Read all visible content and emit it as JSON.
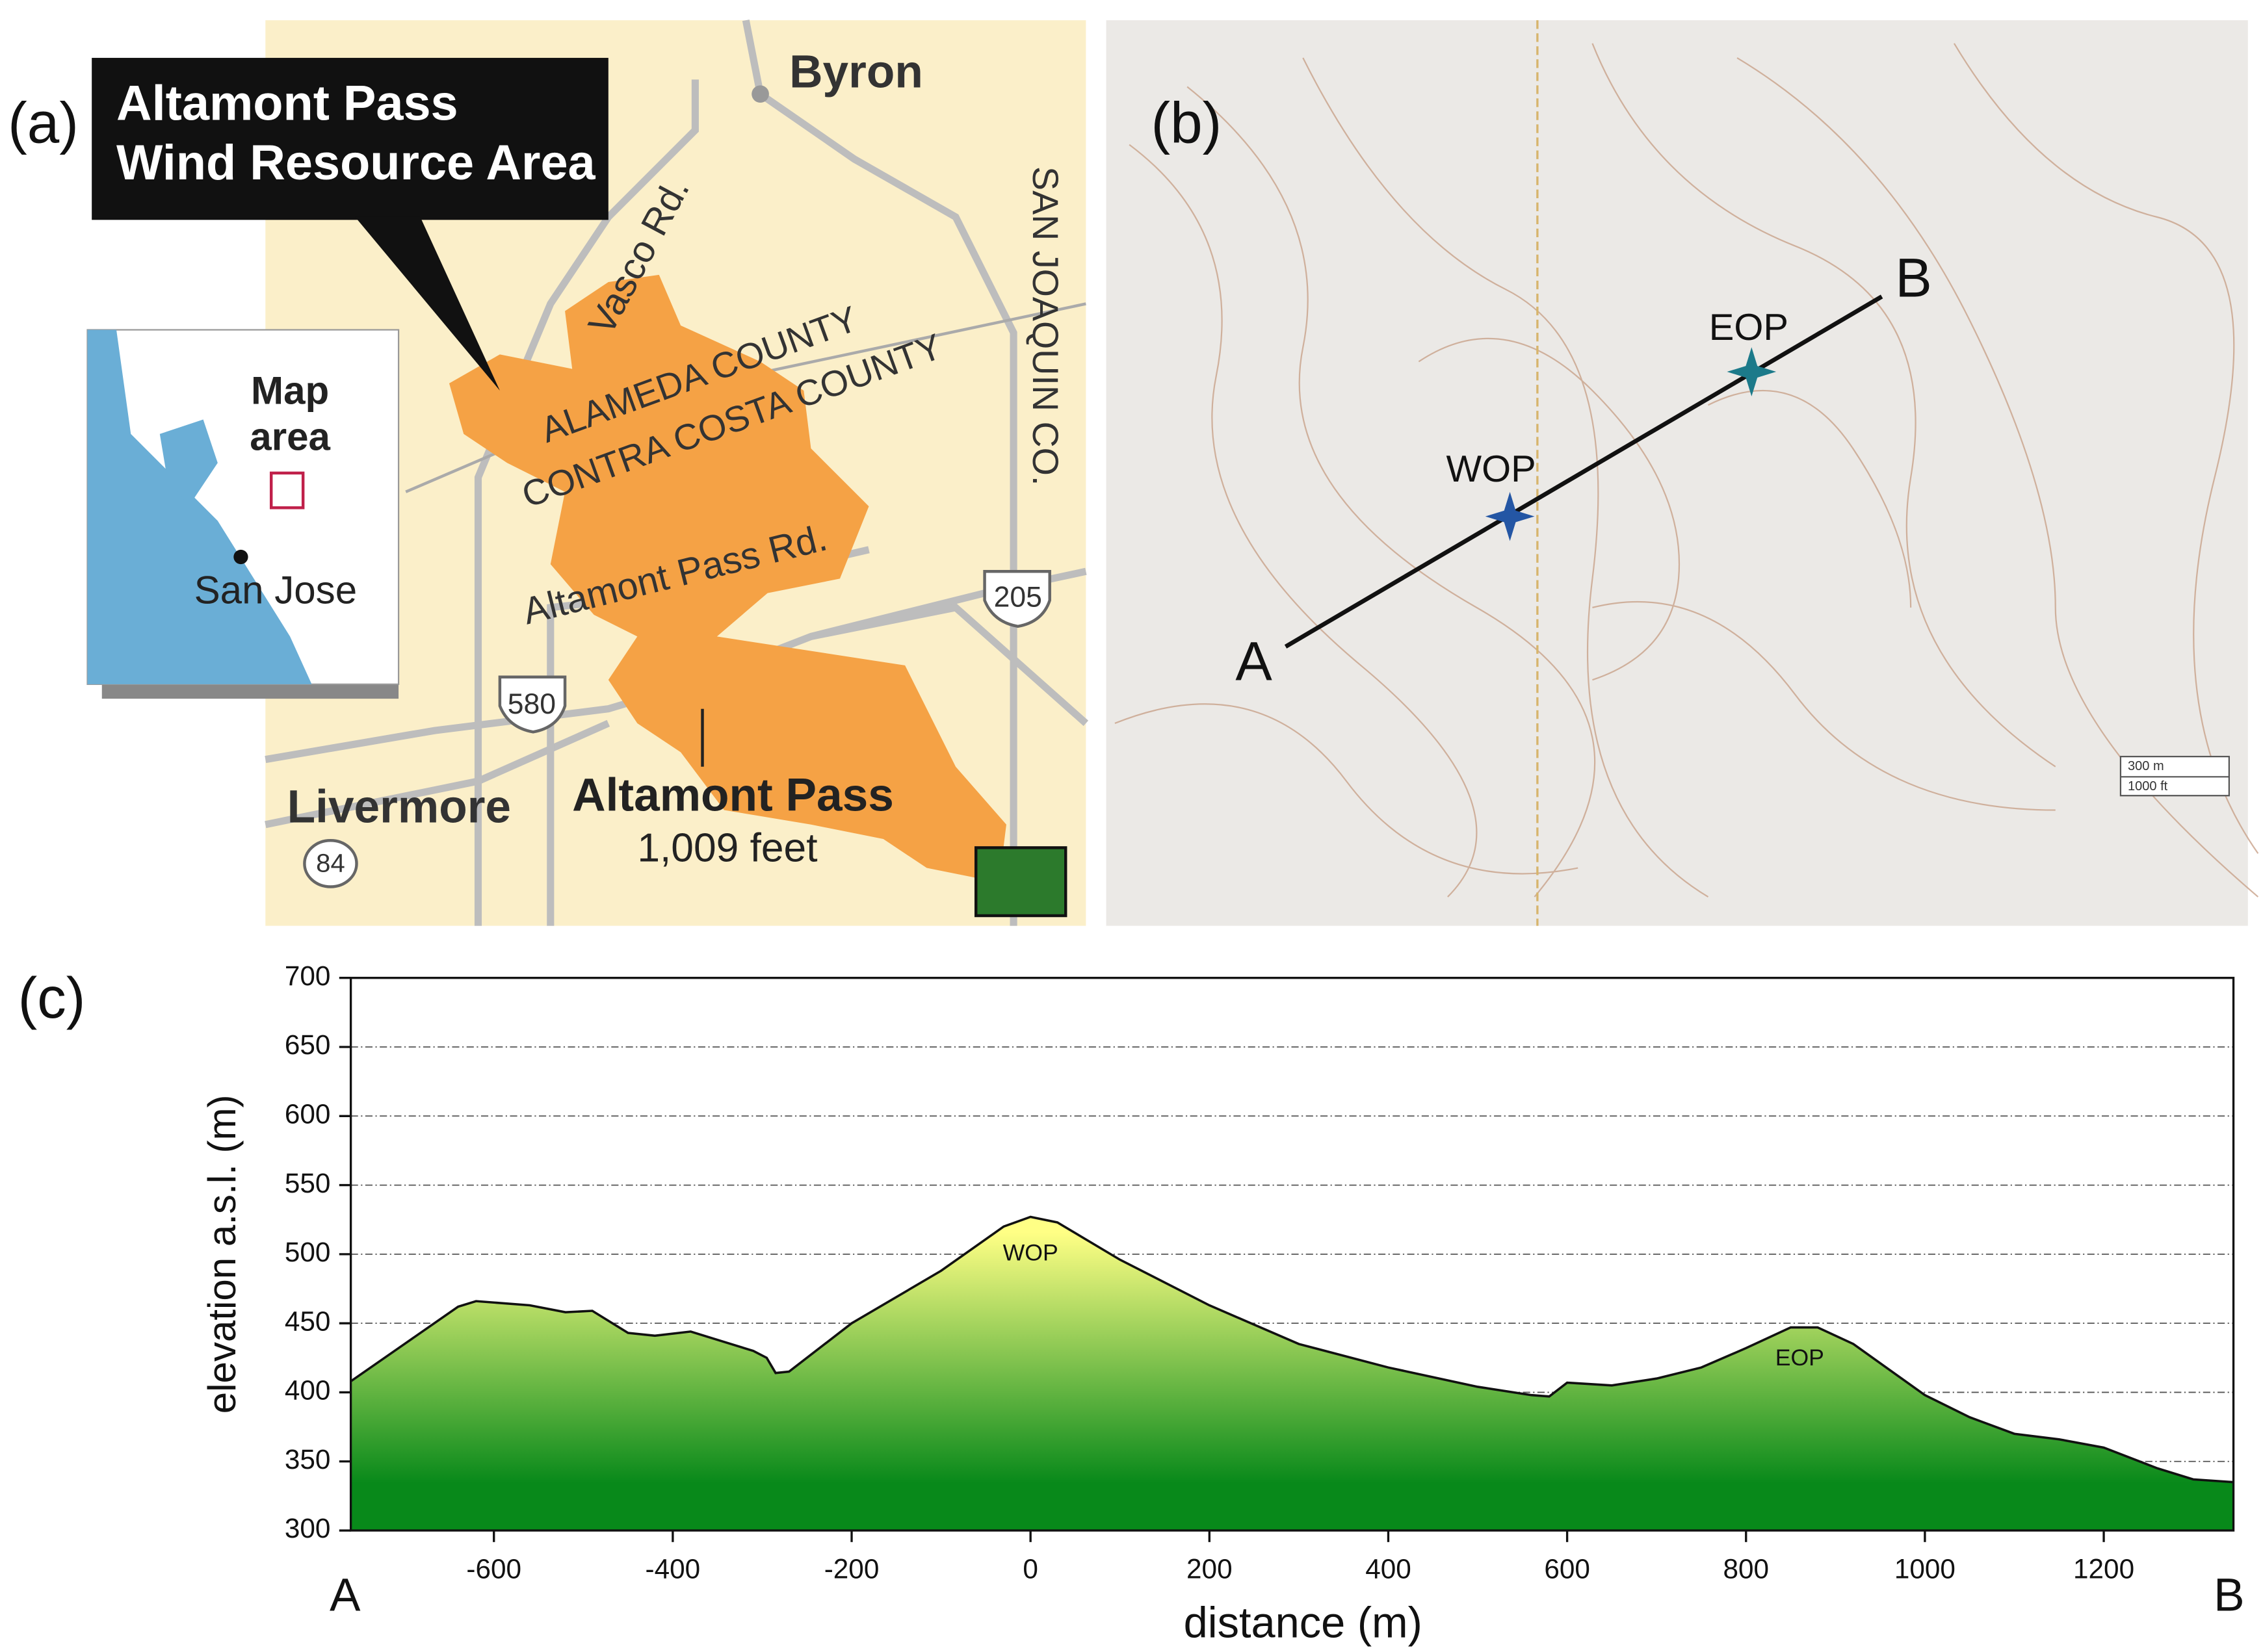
{
  "map_a": {
    "label": "(a)",
    "title": [
      "Altamont Pass",
      "Wind Resource Area"
    ],
    "places": {
      "byron": "Byron",
      "vasco": "Vasco Rd.",
      "alameda": "ALAMEDA COUNTY",
      "contra_costa": "CONTRA COSTA COUNTY",
      "san_joaquin": "SAN JOAQUIN CO.",
      "pass_rd": "Altamont Pass Rd.",
      "livermore": "Livermore",
      "pass": "Altamont Pass",
      "pass_height": "1,009 feet"
    },
    "shields": {
      "i205": "205",
      "i580": "580",
      "r84": "84"
    },
    "inset": {
      "map_area": [
        "Map",
        "area"
      ],
      "city": "San Jose"
    }
  },
  "map_b": {
    "label": "(b)",
    "point_a": "A",
    "point_b": "B",
    "wop": "WOP",
    "eop": "EOP",
    "scale": [
      "300 m",
      "1000 ft"
    ]
  },
  "chart_data": {
    "type": "area",
    "label": "(c)",
    "x_label": "distance (m)",
    "y_label": "elevation a.s.l. (m)",
    "start_label": "A",
    "end_label": "B",
    "x": [
      -760,
      -700,
      -640,
      -620,
      -560,
      -520,
      -490,
      -450,
      -420,
      -380,
      -350,
      -310,
      -295,
      -285,
      -270,
      -200,
      -100,
      -30,
      0,
      30,
      100,
      200,
      300,
      400,
      500,
      560,
      580,
      600,
      650,
      700,
      750,
      800,
      850,
      880,
      920,
      1000,
      1050,
      1100,
      1150,
      1200,
      1260,
      1300,
      1345
    ],
    "values": [
      408,
      435,
      462,
      466,
      463,
      458,
      459,
      443,
      441,
      444,
      438,
      430,
      425,
      414,
      415,
      450,
      488,
      520,
      527,
      523,
      496,
      463,
      435,
      418,
      404,
      398,
      397,
      407,
      405,
      410,
      418,
      432,
      447,
      447,
      435,
      398,
      382,
      370,
      366,
      360,
      345,
      337,
      335
    ],
    "gradient": [
      "#ffff85",
      "#08891a"
    ],
    "xlim": [
      -760,
      1345
    ],
    "ylim": [
      300,
      700
    ],
    "xticks": [
      -600,
      -400,
      -200,
      0,
      200,
      400,
      600,
      800,
      1000,
      1200
    ],
    "yticks": [
      300,
      350,
      400,
      450,
      500,
      550,
      600,
      650,
      700
    ],
    "grid": true,
    "annotations": [
      {
        "text": "WOP",
        "x": 0,
        "y": 500
      },
      {
        "text": "EOP",
        "x": 860,
        "y": 424
      }
    ]
  }
}
